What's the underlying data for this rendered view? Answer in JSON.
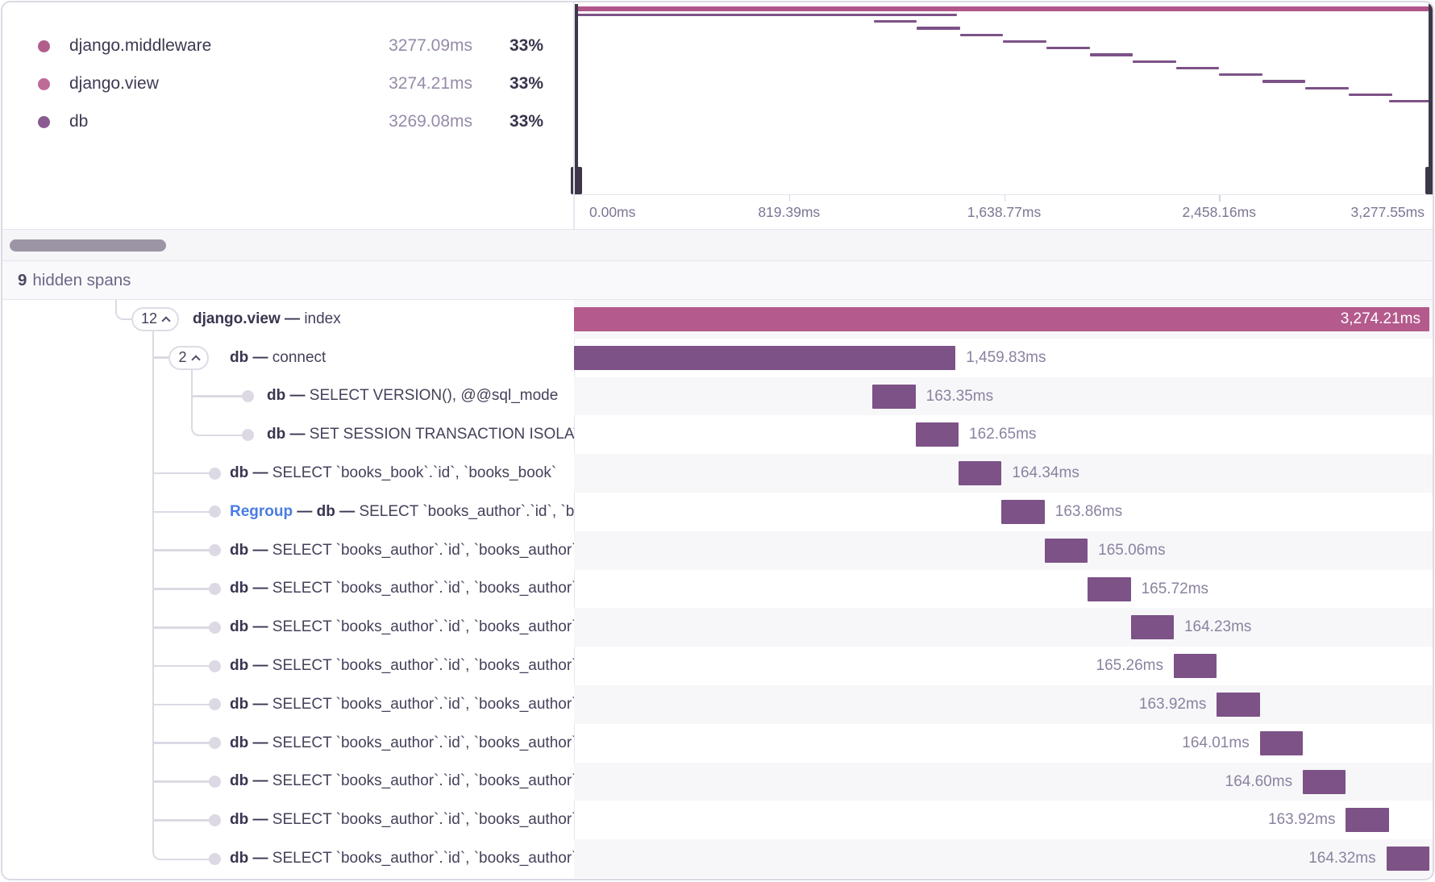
{
  "colors": {
    "pink": "#b45a8c",
    "purple": "#7c5287",
    "minimap_pink": "#b0568a",
    "minimap_purple": "#7c5287",
    "dot_middleware": "#b25e8d",
    "dot_view": "#bf6b97",
    "dot_db": "#8a5b91"
  },
  "legend": {
    "items": [
      {
        "name": "django.middleware",
        "duration": "3277.09ms",
        "percent": "33%",
        "color": "#b25e8d"
      },
      {
        "name": "django.view",
        "duration": "3274.21ms",
        "percent": "33%",
        "color": "#bf6b97"
      },
      {
        "name": "db",
        "duration": "3269.08ms",
        "percent": "33%",
        "color": "#8a5b91"
      }
    ]
  },
  "minimap": {
    "axis_ticks": [
      "0.00ms",
      "819.39ms",
      "1,638.77ms",
      "2,458.16ms",
      "3,277.55ms"
    ],
    "rows": [
      {
        "name": "django.middleware",
        "color": "pink",
        "start_pct": 0,
        "width_pct": 100,
        "y": 5,
        "h": 3
      },
      {
        "name": "django.view",
        "color": "pink",
        "start_pct": 0,
        "width_pct": 100,
        "y": 8.2,
        "h": 3
      },
      {
        "name": "db-connect",
        "color": "purple",
        "start_pct": 0,
        "width_pct": 44.6,
        "y": 13.8,
        "h": 3.4
      },
      {
        "name": "db-query",
        "color": "purple",
        "start_pct": 34.9,
        "width_pct": 5.03,
        "y": 22.0,
        "h": 3.4
      },
      {
        "name": "db-query",
        "color": "purple",
        "start_pct": 39.93,
        "width_pct": 5.03,
        "y": 30.3,
        "h": 3.4
      },
      {
        "name": "db-query",
        "color": "purple",
        "start_pct": 44.96,
        "width_pct": 5.03,
        "y": 38.5,
        "h": 3.4
      },
      {
        "name": "db-query",
        "color": "purple",
        "start_pct": 49.99,
        "width_pct": 5.03,
        "y": 46.8,
        "h": 3.4
      },
      {
        "name": "db-query",
        "color": "purple",
        "start_pct": 55.02,
        "width_pct": 5.03,
        "y": 55.0,
        "h": 3.4
      },
      {
        "name": "db-query",
        "color": "purple",
        "start_pct": 60.06,
        "width_pct": 5.03,
        "y": 63.3,
        "h": 3.4
      },
      {
        "name": "db-query",
        "color": "purple",
        "start_pct": 65.09,
        "width_pct": 5.03,
        "y": 71.5,
        "h": 3.4
      },
      {
        "name": "db-query",
        "color": "purple",
        "start_pct": 70.12,
        "width_pct": 5.03,
        "y": 79.8,
        "h": 3.4
      },
      {
        "name": "db-query",
        "color": "purple",
        "start_pct": 75.15,
        "width_pct": 5.03,
        "y": 88.0,
        "h": 3.4
      },
      {
        "name": "db-query",
        "color": "purple",
        "start_pct": 80.18,
        "width_pct": 5.03,
        "y": 96.3,
        "h": 3.4
      },
      {
        "name": "db-query",
        "color": "purple",
        "start_pct": 85.21,
        "width_pct": 5.03,
        "y": 104.5,
        "h": 3.4
      },
      {
        "name": "db-query",
        "color": "purple",
        "start_pct": 90.24,
        "width_pct": 5.03,
        "y": 112.8,
        "h": 3.4
      },
      {
        "name": "db-query",
        "color": "purple",
        "start_pct": 94.97,
        "width_pct": 5.03,
        "y": 121.0,
        "h": 3.4
      }
    ]
  },
  "hidden_spans": {
    "count": "9",
    "label": "hidden spans"
  },
  "spans": [
    {
      "badge": "12",
      "depth": 1,
      "name": "django.view",
      "detail": "index",
      "duration": "3,274.21ms",
      "bar": {
        "start_pct": 0,
        "width_pct": 100,
        "color": "pink",
        "label_pos": "inside"
      }
    },
    {
      "badge": "2",
      "depth": 2,
      "name": "db",
      "detail": "connect",
      "duration": "1,459.83ms",
      "bar": {
        "start_pct": 0,
        "width_pct": 44.6,
        "color": "purple",
        "label_pos": "right"
      }
    },
    {
      "bullet": true,
      "depth": 3,
      "name": "db",
      "detail": "SELECT VERSION(), @@sql_mode",
      "duration": "163.35ms",
      "bar": {
        "start_pct": 34.9,
        "width_pct": 5.03,
        "color": "purple",
        "label_pos": "right"
      }
    },
    {
      "bullet": true,
      "depth": 3,
      "name": "db",
      "detail": "SET SESSION TRANSACTION ISOLATION LEVEL",
      "duration": "162.65ms",
      "bar": {
        "start_pct": 39.93,
        "width_pct": 5.03,
        "color": "purple",
        "label_pos": "right"
      }
    },
    {
      "bullet": true,
      "depth": 2,
      "name": "db",
      "detail": "SELECT `books_book`.`id`, `books_book`",
      "duration": "164.34ms",
      "bar": {
        "start_pct": 44.96,
        "width_pct": 5.03,
        "color": "purple",
        "label_pos": "right"
      }
    },
    {
      "bullet": true,
      "depth": 2,
      "prefix": "Regroup",
      "name": "db",
      "detail": "SELECT `books_author`.`id`, `books_author`",
      "duration": "163.86ms",
      "bar": {
        "start_pct": 49.99,
        "width_pct": 5.03,
        "color": "purple",
        "label_pos": "right"
      }
    },
    {
      "bullet": true,
      "depth": 2,
      "name": "db",
      "detail": "SELECT `books_author`.`id`, `books_author`",
      "duration": "165.06ms",
      "bar": {
        "start_pct": 55.02,
        "width_pct": 5.03,
        "color": "purple",
        "label_pos": "right"
      }
    },
    {
      "bullet": true,
      "depth": 2,
      "name": "db",
      "detail": "SELECT `books_author`.`id`, `books_author`",
      "duration": "165.72ms",
      "bar": {
        "start_pct": 60.06,
        "width_pct": 5.03,
        "color": "purple",
        "label_pos": "right"
      }
    },
    {
      "bullet": true,
      "depth": 2,
      "name": "db",
      "detail": "SELECT `books_author`.`id`, `books_author`",
      "duration": "164.23ms",
      "bar": {
        "start_pct": 65.09,
        "width_pct": 5.03,
        "color": "purple",
        "label_pos": "right"
      }
    },
    {
      "bullet": true,
      "depth": 2,
      "name": "db",
      "detail": "SELECT `books_author`.`id`, `books_author`",
      "duration": "165.26ms",
      "bar": {
        "start_pct": 70.12,
        "width_pct": 5.03,
        "color": "purple",
        "label_pos": "left"
      }
    },
    {
      "bullet": true,
      "depth": 2,
      "name": "db",
      "detail": "SELECT `books_author`.`id`, `books_author`",
      "duration": "163.92ms",
      "bar": {
        "start_pct": 75.15,
        "width_pct": 5.03,
        "color": "purple",
        "label_pos": "left"
      }
    },
    {
      "bullet": true,
      "depth": 2,
      "name": "db",
      "detail": "SELECT `books_author`.`id`, `books_author`",
      "duration": "164.01ms",
      "bar": {
        "start_pct": 80.18,
        "width_pct": 5.03,
        "color": "purple",
        "label_pos": "left"
      }
    },
    {
      "bullet": true,
      "depth": 2,
      "name": "db",
      "detail": "SELECT `books_author`.`id`, `books_author`",
      "duration": "164.60ms",
      "bar": {
        "start_pct": 85.21,
        "width_pct": 5.03,
        "color": "purple",
        "label_pos": "left"
      }
    },
    {
      "bullet": true,
      "depth": 2,
      "name": "db",
      "detail": "SELECT `books_author`.`id`, `books_author`",
      "duration": "163.92ms",
      "bar": {
        "start_pct": 90.24,
        "width_pct": 5.03,
        "color": "purple",
        "label_pos": "left"
      }
    },
    {
      "bullet": true,
      "depth": 2,
      "name": "db",
      "detail": "SELECT `books_author`.`id`, `books_author`",
      "duration": "164.32ms",
      "bar": {
        "start_pct": 94.97,
        "width_pct": 5.03,
        "color": "purple",
        "label_pos": "left"
      }
    }
  ]
}
